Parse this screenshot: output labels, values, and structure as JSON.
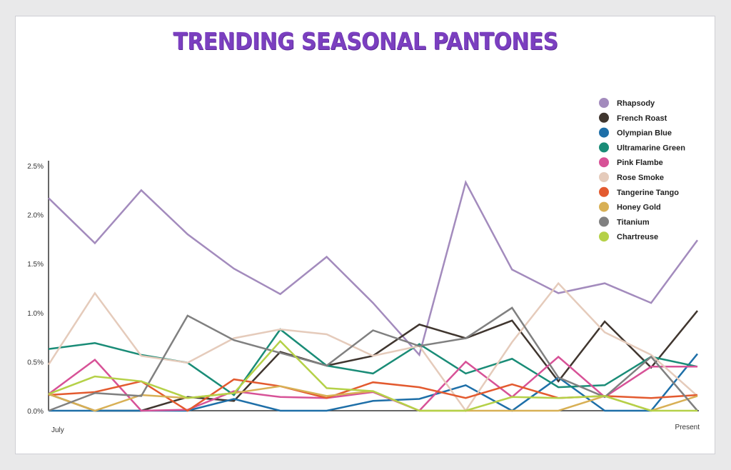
{
  "chart_data": {
    "type": "line",
    "title": "TRENDING SEASONAL PANTONES",
    "xlabel": "",
    "ylabel": "",
    "x_start_label": "July",
    "x_end_label": "Present",
    "y_ticks": [
      "0.0%",
      "0.5%",
      "1.0%",
      "1.5%",
      "2.0%",
      "2.5%"
    ],
    "ylim": [
      0,
      2.5
    ],
    "unit": "%",
    "legend_position": "top-right",
    "grid": false,
    "series": [
      {
        "name": "Rhapsody",
        "color": "#a38bbd",
        "values": [
          2.17,
          1.71,
          2.25,
          1.8,
          1.45,
          1.19,
          1.57,
          1.1,
          0.57,
          2.33,
          1.44,
          1.2,
          1.3,
          1.1,
          1.74
        ]
      },
      {
        "name": "French Roast",
        "color": "#40362f",
        "values": [
          0.17,
          0.0,
          0.0,
          0.14,
          0.1,
          0.6,
          0.46,
          0.56,
          0.88,
          0.74,
          0.92,
          0.3,
          0.91,
          0.44,
          1.02
        ]
      },
      {
        "name": "Olympian Blue",
        "color": "#1e6fa8",
        "values": [
          0.0,
          0.0,
          0.0,
          0.0,
          0.12,
          0.0,
          0.0,
          0.1,
          0.12,
          0.26,
          0.0,
          0.34,
          0.0,
          0.0,
          0.58
        ]
      },
      {
        "name": "Ultramarine Green",
        "color": "#1a8c77",
        "values": [
          0.63,
          0.69,
          0.57,
          0.49,
          0.16,
          0.83,
          0.46,
          0.38,
          0.68,
          0.38,
          0.53,
          0.24,
          0.26,
          0.55,
          0.45
        ]
      },
      {
        "name": "Pink Flambe",
        "color": "#d75297",
        "values": [
          0.17,
          0.52,
          0.0,
          0.01,
          0.2,
          0.14,
          0.13,
          0.19,
          0.0,
          0.5,
          0.14,
          0.55,
          0.14,
          0.45,
          0.45
        ]
      },
      {
        "name": "Rose Smoke",
        "color": "#e5cbbb",
        "values": [
          0.47,
          1.2,
          0.56,
          0.49,
          0.74,
          0.83,
          0.78,
          0.56,
          0.66,
          0.0,
          0.7,
          1.3,
          0.8,
          0.57,
          0.15
        ]
      },
      {
        "name": "Tangerine Tango",
        "color": "#e35a2f",
        "values": [
          0.16,
          0.19,
          0.3,
          0.0,
          0.32,
          0.25,
          0.13,
          0.29,
          0.24,
          0.13,
          0.27,
          0.13,
          0.15,
          0.13,
          0.16
        ]
      },
      {
        "name": "Honey Gold",
        "color": "#d8b055",
        "values": [
          0.17,
          0.0,
          0.16,
          0.13,
          0.18,
          0.25,
          0.15,
          0.2,
          0.0,
          0.0,
          0.0,
          0.0,
          0.15,
          0.0,
          0.15
        ]
      },
      {
        "name": "Titanium",
        "color": "#808080",
        "values": [
          0.0,
          0.18,
          0.15,
          0.97,
          0.72,
          0.59,
          0.46,
          0.82,
          0.66,
          0.74,
          1.05,
          0.34,
          0.14,
          0.55,
          0.0
        ]
      },
      {
        "name": "Chartreuse",
        "color": "#b5d148",
        "values": [
          0.17,
          0.35,
          0.3,
          0.13,
          0.18,
          0.71,
          0.23,
          0.2,
          0.0,
          0.0,
          0.14,
          0.13,
          0.15,
          0.0,
          0.0
        ]
      }
    ]
  }
}
